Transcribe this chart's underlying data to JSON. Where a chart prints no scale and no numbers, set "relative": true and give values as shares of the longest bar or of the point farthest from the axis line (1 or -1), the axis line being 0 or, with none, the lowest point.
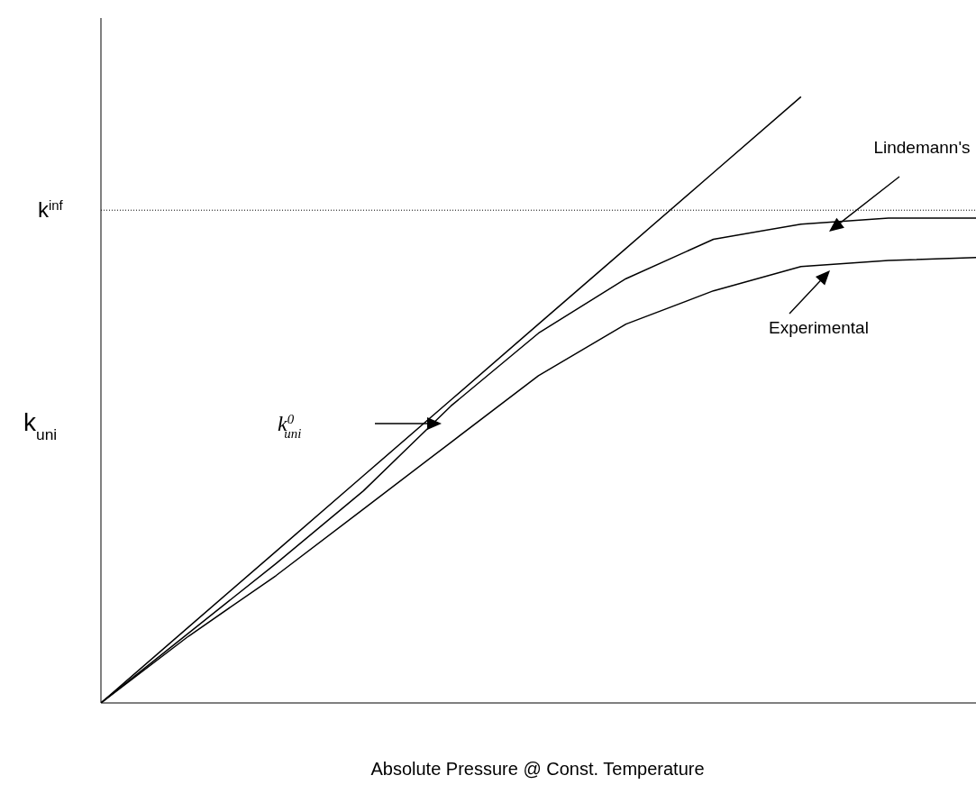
{
  "chart_data": {
    "type": "line",
    "relative": true,
    "xlabel": "Absolute Pressure @ Const. Temperature",
    "ylabel": "k$_{uni}$",
    "categories": [
      null,
      null,
      null,
      null,
      null,
      null,
      null,
      null,
      null,
      null,
      null
    ],
    "series": [
      {
        "color": "#000000",
        "values": [
          0,
          0.125,
          0.25,
          0.375,
          0.5,
          0.625,
          0.75,
          0.875,
          1,
          null,
          null
        ]
      },
      {
        "color": "#000000",
        "values": [
          0,
          0.115,
          0.23,
          0.35,
          0.49,
          0.61,
          0.7,
          0.765,
          0.79,
          0.8,
          0.8
        ]
      },
      {
        "color": "#000000",
        "values": [
          0,
          0.11,
          0.21,
          0.32,
          0.43,
          0.54,
          0.625,
          0.68,
          0.72,
          0.73,
          0.735
        ]
      }
    ],
    "annotations": [
      "k$^{0}$$_{uni}$",
      "Lindemann's",
      "Experimental"
    ],
    "ref_lines": [
      {
        "axis": "y",
        "value": 0.813,
        "label": "k$^{inf}$",
        "color": "#000000",
        "line_style": "dotted"
      }
    ],
    "grid": false,
    "legend": false,
    "marker": "none",
    "line_style": "solid"
  }
}
